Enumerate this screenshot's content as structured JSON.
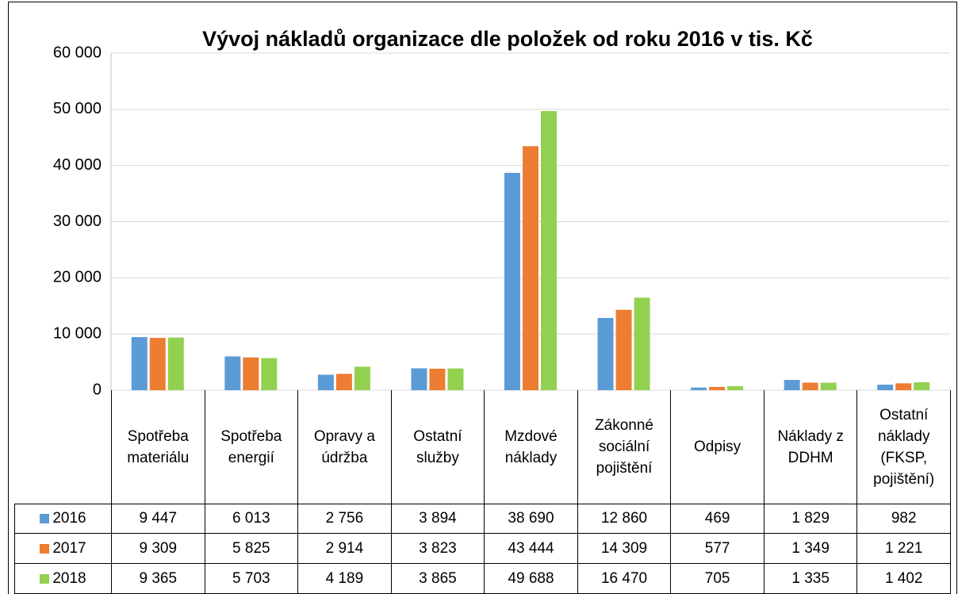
{
  "chart_data": {
    "type": "bar",
    "title": "Vývoj nákladů organizace dle položek od roku 2016 v tis. Kč",
    "categories": [
      "Spotřeba materiálu",
      "Spotřeba energií",
      "Opravy a údržba",
      "Ostatní služby",
      "Mzdové náklady",
      "Zákonné sociální pojištění",
      "Odpisy",
      "Náklady z DDHM",
      "Ostatní náklady (FKSP, pojištění)"
    ],
    "series": [
      {
        "name": "2016",
        "color": "#5b9bd5",
        "values": [
          9447,
          6013,
          2756,
          3894,
          38690,
          12860,
          469,
          1829,
          982
        ],
        "value_labels": [
          "9 447",
          "6 013",
          "2 756",
          "3 894",
          "38 690",
          "12 860",
          "469",
          "1 829",
          "982"
        ]
      },
      {
        "name": "2017",
        "color": "#ed7d31",
        "values": [
          9309,
          5825,
          2914,
          3823,
          43444,
          14309,
          577,
          1349,
          1221
        ],
        "value_labels": [
          "9 309",
          "5 825",
          "2 914",
          "3 823",
          "43 444",
          "14 309",
          "577",
          "1 349",
          "1 221"
        ]
      },
      {
        "name": "2018",
        "color": "#92d050",
        "values": [
          9365,
          5703,
          4189,
          3865,
          49688,
          16470,
          705,
          1335,
          1402
        ],
        "value_labels": [
          "9 365",
          "5 703",
          "4 189",
          "3 865",
          "49 688",
          "16 470",
          "705",
          "1 335",
          "1 402"
        ]
      }
    ],
    "ylim": [
      0,
      60000
    ],
    "yticks": [
      0,
      {
        "value": 10000,
        "label": "10 000"
      },
      {
        "value": 20000,
        "label": "20 000"
      },
      {
        "value": 30000,
        "label": "30 000"
      },
      {
        "value": 40000,
        "label": "40 000"
      },
      {
        "value": 50000,
        "label": "50 000"
      },
      {
        "value": 60000,
        "label": "60 000"
      }
    ],
    "grid": true
  }
}
